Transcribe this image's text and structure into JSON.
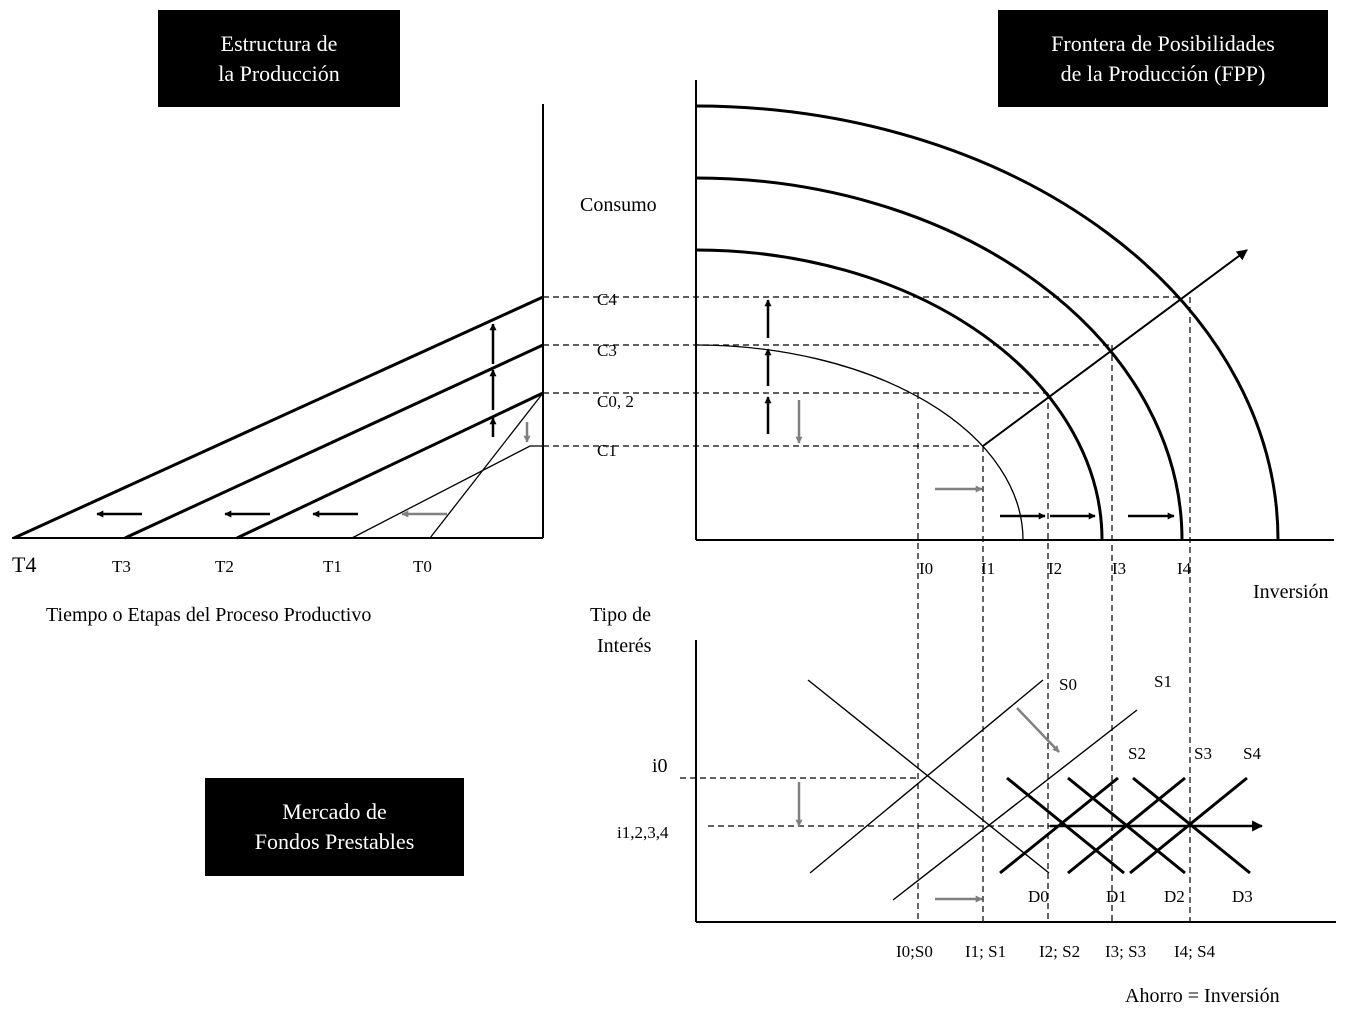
{
  "boxes": {
    "production_structure": [
      "Estructura de",
      "la Producción"
    ],
    "ppf": [
      "Frontera de Posibilidades",
      "de la Producción (FPP)"
    ],
    "loanable_funds": [
      "Mercado de",
      "Fondos Prestables"
    ]
  },
  "left_panel": {
    "time_labels": [
      "T4",
      "T3",
      "T2",
      "T1",
      "T0"
    ],
    "x_axis_title": "Tiempo o Etapas del Proceso Productivo"
  },
  "ppf_panel": {
    "y_axis_title": "Consumo",
    "consumption_labels": [
      "C4",
      "C3",
      "C0, 2",
      "C1"
    ],
    "investment_labels": [
      "I0",
      "I1",
      "I2",
      "I3",
      "I4"
    ],
    "x_axis_title": "Inversión"
  },
  "loan_panel": {
    "y_axis_title": [
      "Tipo de",
      "Interés"
    ],
    "rate_labels": [
      "i0",
      "i1,2,3,4"
    ],
    "supply_labels": [
      "S0",
      "S1",
      "S2",
      "S3",
      "S4"
    ],
    "demand_labels": [
      "D0",
      "D1",
      "D2",
      "D3"
    ],
    "x_labels": [
      "I0;S0",
      "I1; S1",
      "I2; S2",
      "I3; S3",
      "I4; S4"
    ],
    "x_axis_title": "Ahorro = Inversión"
  },
  "colors": {
    "ink": "#000000",
    "shift_arrow": "#808080",
    "box_bg": "#000000",
    "box_text": "#ffffff"
  }
}
